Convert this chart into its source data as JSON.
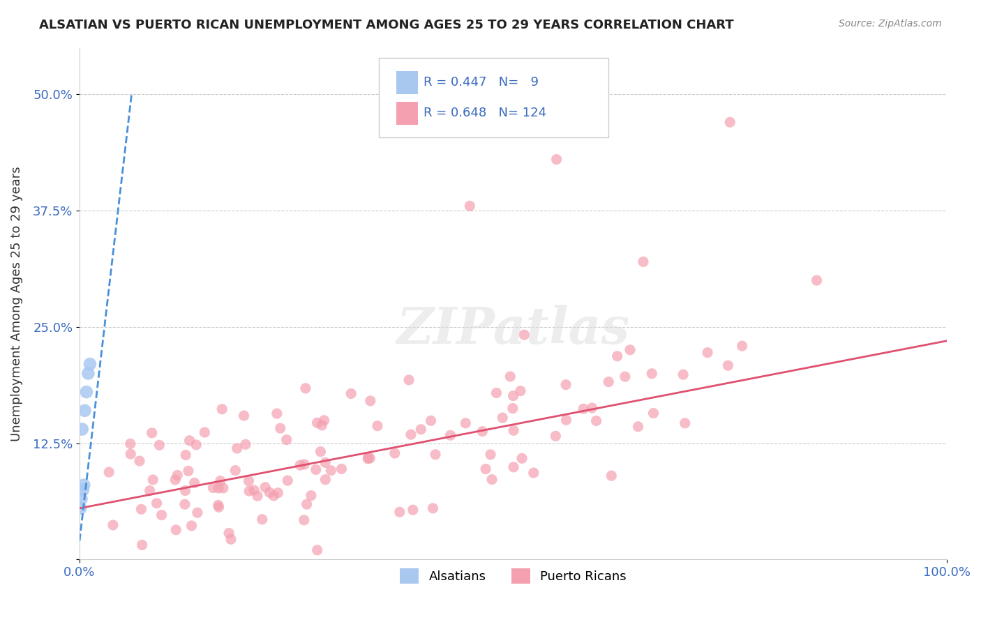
{
  "title": "ALSATIAN VS PUERTO RICAN UNEMPLOYMENT AMONG AGES 25 TO 29 YEARS CORRELATION CHART",
  "source": "Source: ZipAtlas.com",
  "ylabel": "Unemployment Among Ages 25 to 29 years",
  "xlim": [
    0.0,
    1.0
  ],
  "ylim": [
    0.0,
    0.55
  ],
  "alsatian_color": "#a8c8f0",
  "puerto_rican_color": "#f4a0b0",
  "alsatian_line_color": "#4a90d9",
  "puerto_rican_line_color": "#e05070",
  "legend_text_color": "#3a6abf",
  "background_color": "#ffffff",
  "grid_color": "#cccccc",
  "alsatian_trend_x": [
    0.0,
    0.06
  ],
  "alsatian_trend_y": [
    0.02,
    0.5
  ],
  "puerto_rican_trend_x": [
    0.0,
    1.0
  ],
  "puerto_rican_trend_y": [
    0.055,
    0.235
  ]
}
